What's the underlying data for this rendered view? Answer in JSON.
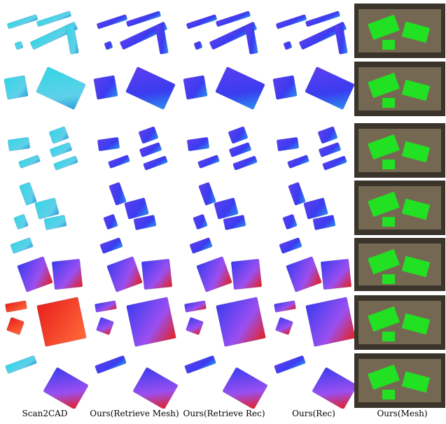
{
  "columns": [
    {
      "label": "Scan2CAD",
      "palette": "cyan"
    },
    {
      "label": "Ours(Retrieve Mesh)",
      "palette": "blue"
    },
    {
      "label": "Ours(Retrieve Rec)",
      "palette": "blue"
    },
    {
      "label": "Ours(Rec)",
      "palette": "blue"
    },
    {
      "label": "Ours(Mesh)",
      "palette": "scene"
    }
  ],
  "colors": {
    "heat_low": "#3b3cf0",
    "heat_mid": "#33d6e6",
    "heat_high": "#e8201c",
    "mesh_green": "#22e022",
    "scene_floor": "#8a7a62"
  }
}
